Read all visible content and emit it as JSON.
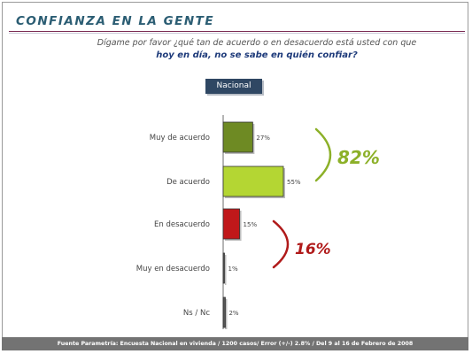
{
  "header": {
    "title": "CONFIANZA EN LA GENTE"
  },
  "question": {
    "line1": "Dígame por favor ¿qué tan de acuerdo o en desacuerdo está usted con que",
    "line2": "hoy en día, no se sabe en quién confiar?"
  },
  "scope_tab": {
    "label": "Nacional"
  },
  "footer": {
    "source": "Fuente Parametría: Encuesta Nacional en vivienda / 1200 casos/ Error (+/-) 2.8% / Del 9 al 16 de Febrero de 2008"
  },
  "colors": {
    "title": "#2b5d73",
    "agree_dark": "#6e8a23",
    "agree_light": "#b4d633",
    "disagree": "#c0181a",
    "neutral": "#555555",
    "bracket_agree": "#8cb028",
    "bracket_disagree": "#b01a1a"
  },
  "chart_data": {
    "type": "bar",
    "orientation": "horizontal",
    "title": "",
    "xlabel": "",
    "ylabel": "",
    "categories": [
      "Muy de acuerdo",
      "De acuerdo",
      "En desacuerdo",
      "Muy en desacuerdo",
      "Ns / Nc"
    ],
    "values": [
      27,
      55,
      15,
      1,
      2
    ],
    "value_labels": [
      "27%",
      "55%",
      "15%",
      "1%",
      "2%"
    ],
    "bar_colors": [
      "#6e8a23",
      "#b4d633",
      "#c0181a",
      "#555555",
      "#555555"
    ],
    "xlim": [
      0,
      100
    ],
    "grid": false,
    "legend": "none",
    "annotations": [
      {
        "label": "82%",
        "group": "agree",
        "color": "#8cb028",
        "covers": [
          "Muy de acuerdo",
          "De acuerdo"
        ]
      },
      {
        "label": "16%",
        "group": "disagree",
        "color": "#b01a1a",
        "covers": [
          "En desacuerdo",
          "Muy en desacuerdo"
        ]
      }
    ]
  }
}
